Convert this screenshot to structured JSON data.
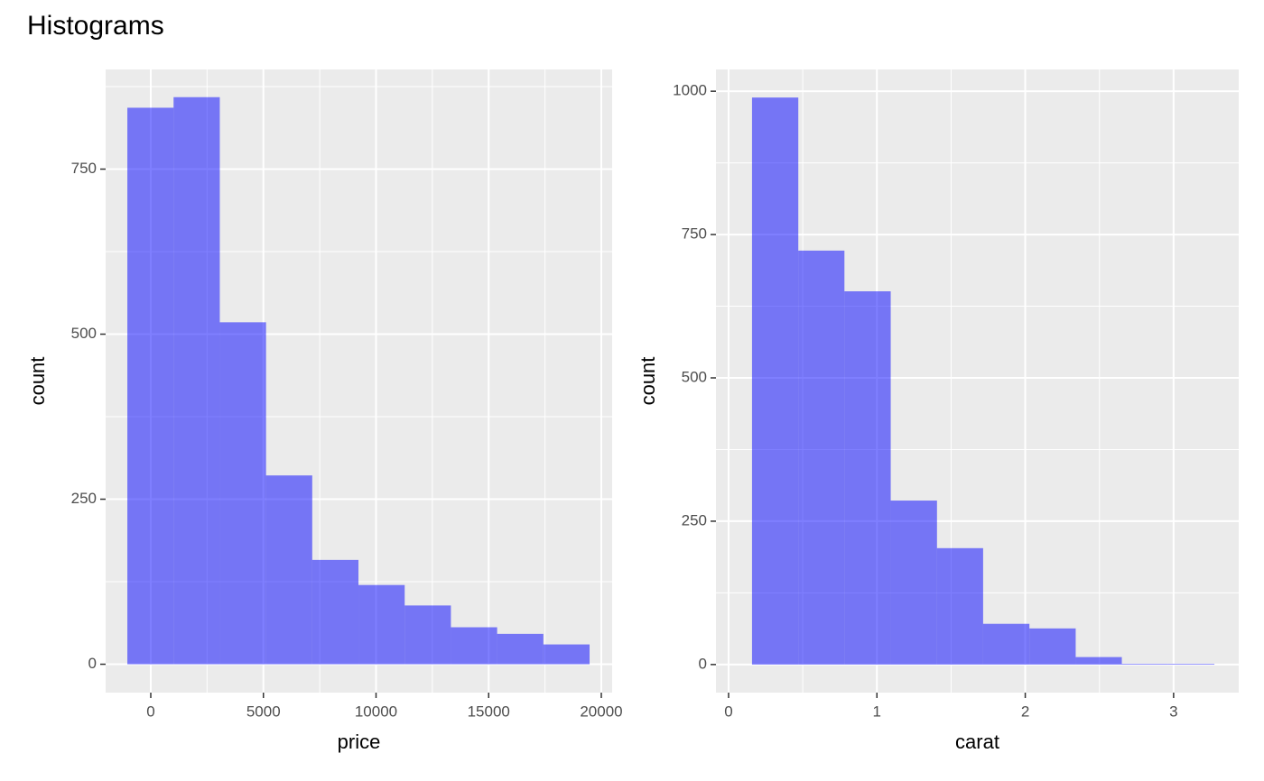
{
  "title": "Histograms",
  "chart_data": [
    {
      "type": "histogram",
      "x_label": "price",
      "y_label": "count",
      "bins": [
        -1040,
        1012,
        3064,
        5116,
        7168,
        9220,
        11272,
        13324,
        15376,
        17428,
        19480
      ],
      "counts": [
        843,
        859,
        518,
        286,
        158,
        120,
        89,
        56,
        46,
        30
      ],
      "color": "#0000ff",
      "alpha": 0.5,
      "xlim": [
        -2004,
        20481
      ],
      "xticks": [
        0,
        5000,
        10000,
        15000,
        20000
      ],
      "ylim": [
        -43,
        901
      ],
      "yticks": [
        0,
        250,
        500,
        750
      ],
      "grid": true
    },
    {
      "type": "histogram",
      "x_label": "carat",
      "y_label": "count",
      "bins": [
        0.158,
        0.47,
        0.781,
        1.093,
        1.405,
        1.716,
        2.028,
        2.34,
        2.651,
        2.963,
        3.275
      ],
      "counts": [
        989,
        722,
        651,
        286,
        203,
        71,
        63,
        13,
        1,
        1
      ],
      "color": "#0000ff",
      "alpha": 0.5,
      "xlim": [
        -0.085,
        3.439
      ],
      "xticks": [
        0,
        1,
        2,
        3
      ],
      "ylim": [
        -49,
        1038
      ],
      "yticks": [
        0,
        250,
        500,
        750,
        1000
      ],
      "grid": true
    }
  ]
}
